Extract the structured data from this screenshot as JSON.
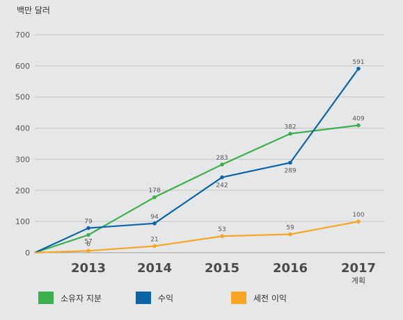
{
  "chart_data": {
    "type": "line",
    "unit_label": "백만 달러",
    "categories": [
      "2013",
      "2014",
      "2015",
      "2016",
      "2017"
    ],
    "category_sublabels": [
      "",
      "",
      "",
      "",
      "계획"
    ],
    "ylim": [
      0,
      700
    ],
    "yticks": [
      0,
      100,
      200,
      300,
      400,
      500,
      600,
      700
    ],
    "grid": true,
    "series": [
      {
        "name": "소유자 지분",
        "color": "#3cb04a",
        "start": 0,
        "values": [
          57,
          178,
          283,
          382,
          409
        ],
        "labels": [
          "57",
          "178",
          "283",
          "382",
          "409"
        ]
      },
      {
        "name": "수익",
        "color": "#0a64a8",
        "start": 0,
        "values": [
          79,
          94,
          242,
          289,
          591
        ],
        "labels": [
          "79",
          "94",
          "242",
          "289",
          "591"
        ]
      },
      {
        "name": "세전 이익",
        "color": "#f6a623",
        "start": 0,
        "values": [
          6,
          21,
          53,
          59,
          100
        ],
        "labels": [
          "6",
          "21",
          "53",
          "59",
          "100"
        ]
      }
    ],
    "legend_position": "bottom"
  }
}
